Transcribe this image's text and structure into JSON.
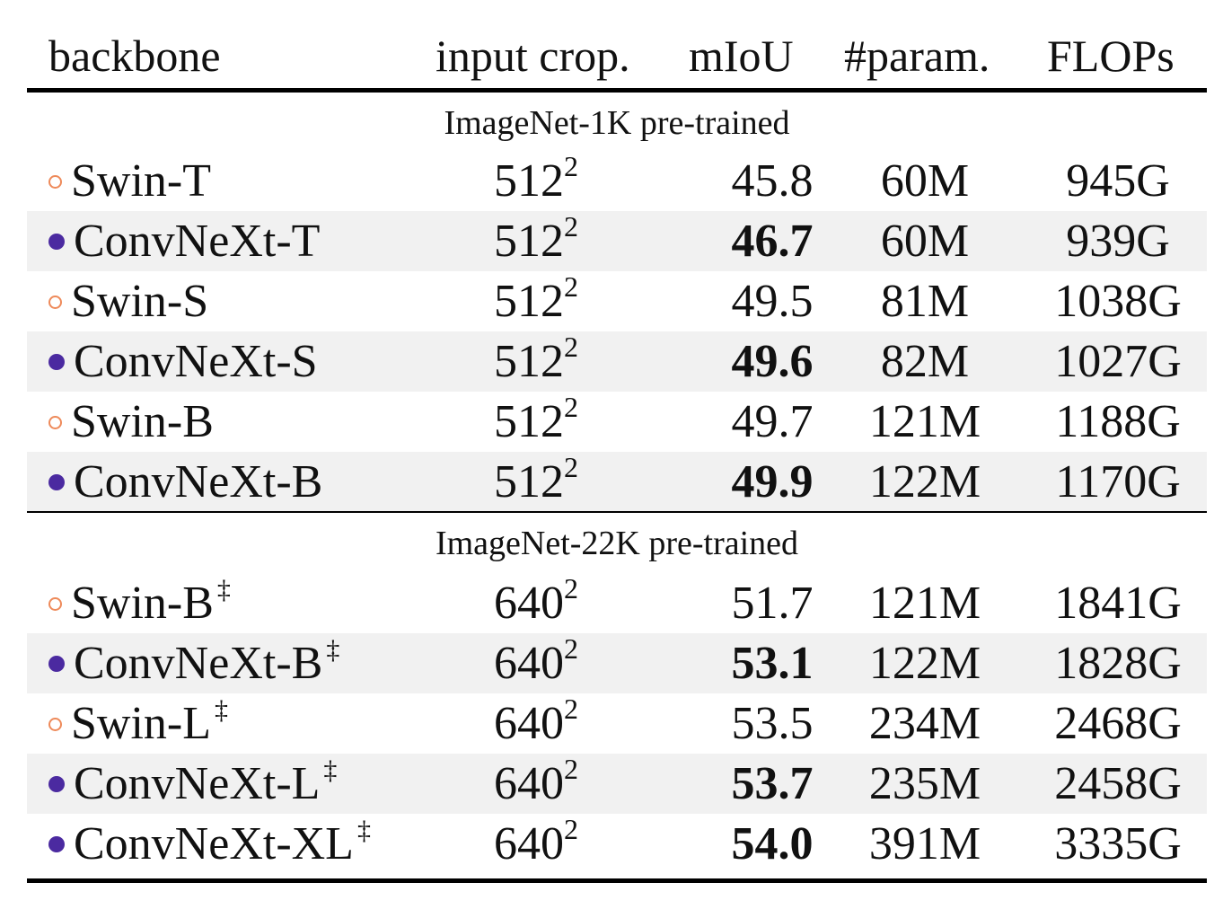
{
  "headers": {
    "backbone": "backbone",
    "crop": "input crop.",
    "miou": "mIoU",
    "param": "#param.",
    "flops": "FLOPs"
  },
  "sections": [
    {
      "title": "ImageNet-1K pre-trained",
      "rows": [
        {
          "marker": "open",
          "backbone": "Swin-T",
          "dagger": "",
          "crop_base": "512",
          "crop_exp": "2",
          "miou": "45.8",
          "bold": false,
          "param": "60M",
          "flops": "945G"
        },
        {
          "marker": "filled",
          "backbone": "ConvNeXt-T",
          "dagger": "",
          "crop_base": "512",
          "crop_exp": "2",
          "miou": "46.7",
          "bold": true,
          "param": "60M",
          "flops": "939G"
        },
        {
          "marker": "open",
          "backbone": "Swin-S",
          "dagger": "",
          "crop_base": "512",
          "crop_exp": "2",
          "miou": "49.5",
          "bold": false,
          "param": "81M",
          "flops": "1038G"
        },
        {
          "marker": "filled",
          "backbone": "ConvNeXt-S",
          "dagger": "",
          "crop_base": "512",
          "crop_exp": "2",
          "miou": "49.6",
          "bold": true,
          "param": "82M",
          "flops": "1027G"
        },
        {
          "marker": "open",
          "backbone": "Swin-B",
          "dagger": "",
          "crop_base": "512",
          "crop_exp": "2",
          "miou": "49.7",
          "bold": false,
          "param": "121M",
          "flops": "1188G"
        },
        {
          "marker": "filled",
          "backbone": "ConvNeXt-B",
          "dagger": "",
          "crop_base": "512",
          "crop_exp": "2",
          "miou": "49.9",
          "bold": true,
          "param": "122M",
          "flops": "1170G"
        }
      ]
    },
    {
      "title": "ImageNet-22K pre-trained",
      "rows": [
        {
          "marker": "open",
          "backbone": "Swin-B",
          "dagger": "‡",
          "crop_base": "640",
          "crop_exp": "2",
          "miou": "51.7",
          "bold": false,
          "param": "121M",
          "flops": "1841G"
        },
        {
          "marker": "filled",
          "backbone": "ConvNeXt-B",
          "dagger": "‡",
          "crop_base": "640",
          "crop_exp": "2",
          "miou": "53.1",
          "bold": true,
          "param": "122M",
          "flops": "1828G"
        },
        {
          "marker": "open",
          "backbone": "Swin-L",
          "dagger": "‡",
          "crop_base": "640",
          "crop_exp": "2",
          "miou": "53.5",
          "bold": false,
          "param": "234M",
          "flops": "2468G"
        },
        {
          "marker": "filled",
          "backbone": "ConvNeXt-L",
          "dagger": "‡",
          "crop_base": "640",
          "crop_exp": "2",
          "miou": "53.7",
          "bold": true,
          "param": "235M",
          "flops": "2458G"
        },
        {
          "marker": "filled",
          "backbone": "ConvNeXt-XL",
          "dagger": "‡",
          "crop_base": "640",
          "crop_exp": "2",
          "miou": "54.0",
          "bold": true,
          "param": "391M",
          "flops": "3335G"
        }
      ]
    }
  ],
  "colors": {
    "open_marker": "#ee8a5a",
    "filled_marker": "#4b2aa0",
    "row_shade": "#f1f1f1"
  }
}
